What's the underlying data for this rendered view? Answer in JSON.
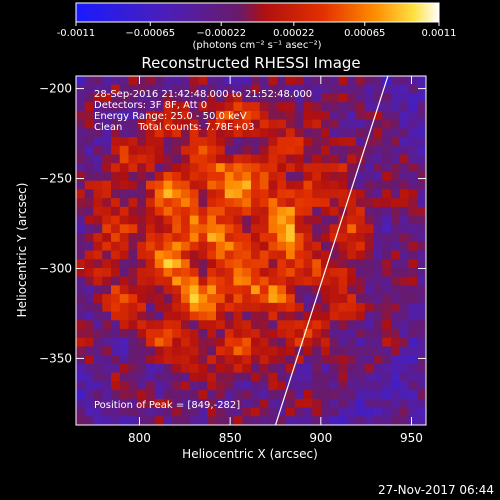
{
  "chart_data": {
    "type": "heatmap",
    "title": "Reconstructed RHESSI Image",
    "xlabel": "Heliocentric X (arcsec)",
    "ylabel": "Heliocentric Y (arcsec)",
    "xlim": [
      765,
      958
    ],
    "ylim": [
      -387,
      -193
    ],
    "x_ticks": [
      800,
      850,
      900,
      950
    ],
    "y_ticks": [
      -200,
      -250,
      -300,
      -350
    ],
    "colorbar": {
      "ticks": [
        {
          "value": -0.0011,
          "label": "-0.0011"
        },
        {
          "value": -0.00065,
          "label": "−0.00065"
        },
        {
          "value": -0.00022,
          "label": "−0.00022"
        },
        {
          "value": 0.00022,
          "label": "0.00022"
        },
        {
          "value": 0.00065,
          "label": "0.00065"
        },
        {
          "value": 0.0011,
          "label": "0.0011"
        }
      ],
      "range": [
        -0.0011,
        0.0011
      ],
      "label": "(photons cm⁻² s⁻¹ asec⁻²)"
    },
    "annotations": [
      "28-Sep-2016 21:42:48.000 to 21:52:48.000",
      "Detectors: 3F 8F, Att 0",
      "Energy Range: 25.0 - 50.0 keV",
      "Clean     Total counts: 7.78E+03"
    ],
    "peak": {
      "label": "Position of Peak = [849,-282]",
      "x": 849,
      "y": -282
    },
    "limb_line": {
      "x": [
        875,
        937
      ],
      "y": [
        -387,
        -193
      ]
    },
    "grid": false,
    "colormap": "blue-purple-red-yellow-white"
  },
  "footer": {
    "date": "27-Nov-2017 06:44"
  }
}
